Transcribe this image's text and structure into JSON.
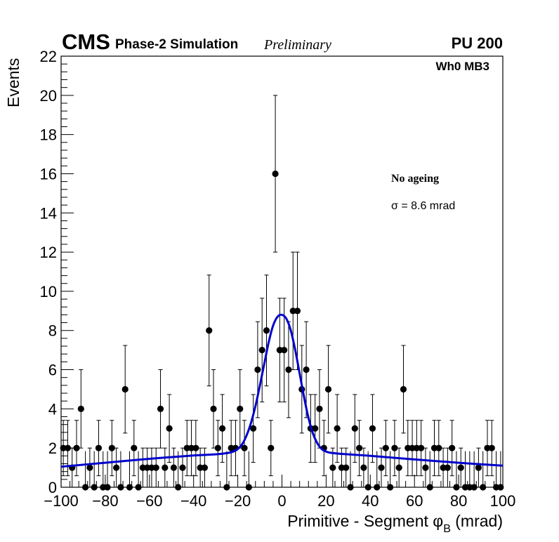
{
  "header": {
    "experiment": "CMS",
    "subtitle": "Phase-2 Simulation",
    "status": "Preliminary",
    "pileup": "PU 200",
    "station": "Wh0 MB3"
  },
  "annotations": {
    "condition": "No ageing",
    "sigma": "σ = 8.6 mrad"
  },
  "colors": {
    "fit": "#0000cc",
    "points": "#000000"
  },
  "chart_data": {
    "type": "scatter",
    "title": "",
    "xlabel": "Primitive - Segment φ_B (mrad)",
    "xlabel_main": "Primitive - Segment ",
    "xlabel_symbol": "φ",
    "xlabel_sub": "B",
    "xlabel_unit": " (mrad)",
    "ylabel": "Events",
    "xlim": [
      -100,
      100
    ],
    "ylim": [
      0,
      22
    ],
    "x_ticks": [
      -100,
      -80,
      -60,
      -40,
      -20,
      0,
      20,
      40,
      60,
      80,
      100
    ],
    "x_tick_labels": [
      "−100",
      "−80",
      "−60",
      "−40",
      "−20",
      "0",
      "20",
      "40",
      "60",
      "80",
      "100"
    ],
    "y_ticks": [
      0,
      2,
      4,
      6,
      8,
      10,
      12,
      14,
      16,
      18,
      20,
      22
    ],
    "y_tick_labels": [
      "0",
      "2",
      "4",
      "6",
      "8",
      "10",
      "12",
      "14",
      "16",
      "18",
      "20",
      "22"
    ],
    "bin_width": 2,
    "series": [
      {
        "name": "Simulation",
        "style": "points-with-errors",
        "x": [
          -99,
          -97,
          -95,
          -93,
          -91,
          -89,
          -87,
          -85,
          -83,
          -81,
          -79,
          -77,
          -75,
          -73,
          -71,
          -69,
          -67,
          -65,
          -63,
          -61,
          -59,
          -57,
          -55,
          -53,
          -51,
          -49,
          -47,
          -45,
          -43,
          -41,
          -39,
          -37,
          -35,
          -33,
          -31,
          -29,
          -27,
          -25,
          -23,
          -21,
          -19,
          -17,
          -15,
          -13,
          -11,
          -9,
          -7,
          -5,
          -3,
          -1,
          1,
          3,
          5,
          7,
          9,
          11,
          13,
          15,
          17,
          19,
          21,
          23,
          25,
          27,
          29,
          31,
          33,
          35,
          37,
          39,
          41,
          43,
          45,
          47,
          49,
          51,
          53,
          55,
          57,
          59,
          61,
          63,
          65,
          67,
          69,
          71,
          73,
          75,
          77,
          79,
          81,
          83,
          85,
          87,
          89,
          91,
          93,
          95,
          97,
          99
        ],
        "y": [
          2,
          2,
          1,
          2,
          4,
          0,
          1,
          0,
          2,
          0,
          0,
          2,
          1,
          0,
          5,
          0,
          2,
          0,
          1,
          1,
          1,
          1,
          4,
          1,
          3,
          1,
          0,
          1,
          2,
          2,
          2,
          1,
          1,
          8,
          4,
          2,
          3,
          0,
          2,
          2,
          4,
          2,
          0,
          3,
          6,
          7,
          8,
          2,
          16,
          7,
          7,
          6,
          9,
          9,
          5,
          6,
          3,
          3,
          4,
          2,
          5,
          1,
          3,
          1,
          1,
          0,
          3,
          2,
          1,
          0,
          3,
          0,
          1,
          2,
          0,
          2,
          1,
          5,
          2,
          2,
          2,
          2,
          1,
          0,
          2,
          2,
          1,
          1,
          2,
          0,
          1,
          0,
          0,
          0,
          1,
          0,
          2,
          2,
          0,
          0
        ]
      },
      {
        "name": "Fit",
        "style": "line",
        "x": [
          -100,
          -80,
          -60,
          -40,
          -30,
          -25,
          -22,
          -20,
          -18,
          -16,
          -14,
          -12,
          -10,
          -8,
          -6,
          -4,
          -2,
          0,
          2,
          4,
          6,
          8,
          10,
          12,
          14,
          16,
          18,
          20,
          22,
          25,
          30,
          40,
          60,
          80,
          100
        ],
        "y": [
          1.05,
          1.25,
          1.45,
          1.62,
          1.68,
          1.74,
          1.82,
          1.95,
          2.2,
          2.65,
          3.3,
          4.15,
          5.2,
          6.3,
          7.4,
          8.25,
          8.7,
          8.8,
          8.6,
          8.0,
          7.0,
          5.8,
          4.6,
          3.55,
          2.75,
          2.25,
          1.95,
          1.82,
          1.76,
          1.72,
          1.68,
          1.6,
          1.42,
          1.25,
          1.1
        ]
      }
    ]
  }
}
